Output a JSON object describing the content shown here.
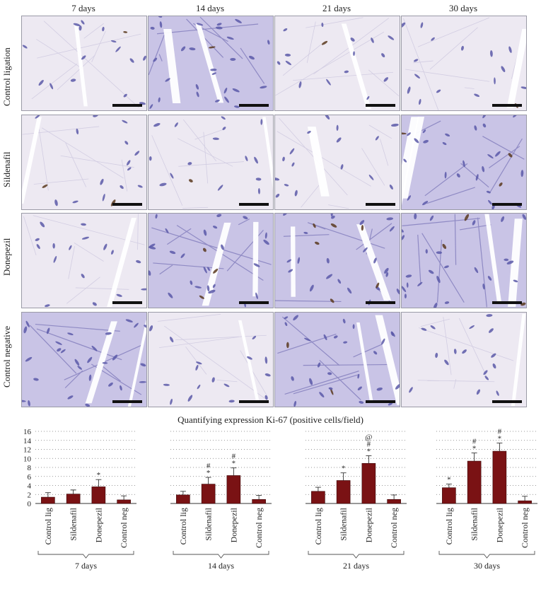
{
  "micrograph_grid": {
    "columns": [
      "7 days",
      "14 days",
      "21 days",
      "30 days"
    ],
    "rows": [
      "Control ligation",
      "Sildenafil",
      "Donepezil",
      "Control negative"
    ]
  },
  "colors": {
    "bar": "#7a1214",
    "tissue_light": "#ede9f2",
    "tissue_dark": "#c9c4e6",
    "nucleus": "#5a59a8",
    "positive_nucleus": "#5a3a1e",
    "gap": "#ffffff",
    "scale_bar": "#111111"
  },
  "chart_data": {
    "type": "bar",
    "title": "Quantifying expression Ki-67 (positive cells/field)",
    "ylim": [
      0,
      16
    ],
    "yticks": [
      0,
      2,
      4,
      6,
      8,
      10,
      12,
      14,
      16
    ],
    "grid": "dotted horizontal",
    "groups": [
      {
        "name": "7 days",
        "categories": [
          "Control lig",
          "Sildenafil",
          "Donepezil",
          "Control neg"
        ],
        "values": [
          1.4,
          2.1,
          3.7,
          0.8
        ],
        "errors": [
          1.0,
          0.9,
          1.6,
          0.9
        ],
        "annotations": [
          [],
          [],
          [
            "*"
          ],
          []
        ]
      },
      {
        "name": "14 days",
        "categories": [
          "Control lig",
          "Sildenafil",
          "Donepezil",
          "Control neg"
        ],
        "values": [
          1.9,
          4.3,
          6.2,
          0.9
        ],
        "errors": [
          0.8,
          1.5,
          1.7,
          0.9
        ],
        "annotations": [
          [],
          [
            "*",
            "#"
          ],
          [
            "*",
            "#"
          ],
          []
        ]
      },
      {
        "name": "21 days",
        "categories": [
          "Control lig",
          "Sildenafil",
          "Donepezil",
          "Control neg"
        ],
        "values": [
          2.7,
          5.1,
          8.9,
          0.9
        ],
        "errors": [
          0.9,
          1.7,
          1.7,
          1.0
        ],
        "annotations": [
          [],
          [
            "*"
          ],
          [
            "*",
            "#",
            "@"
          ],
          []
        ]
      },
      {
        "name": "30 days",
        "categories": [
          "Control lig",
          "Sildenafil",
          "Donepezil",
          "Control neg"
        ],
        "values": [
          3.5,
          9.4,
          11.6,
          0.6
        ],
        "errors": [
          0.8,
          1.8,
          1.8,
          1.0
        ],
        "annotations": [
          [
            "*"
          ],
          [
            "*",
            "#"
          ],
          [
            "*",
            "#"
          ],
          []
        ]
      }
    ]
  }
}
